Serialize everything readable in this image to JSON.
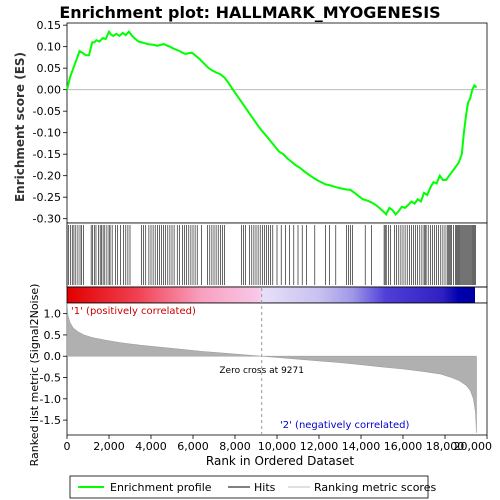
{
  "chart_data": [
    {
      "type": "line",
      "title": "Enrichment plot: HALLMARK_MYOGENESIS",
      "ylabel": "Enrichment score (ES)",
      "ylim": [
        -0.31,
        0.155
      ],
      "xlim": [
        0,
        20000
      ],
      "y_ticks": [
        "0.15",
        "0.10",
        "0.05",
        "0.00",
        "-0.05",
        "-0.10",
        "-0.15",
        "-0.20",
        "-0.25",
        "-0.30"
      ],
      "y_tick_values": [
        0.15,
        0.1,
        0.05,
        0.0,
        -0.05,
        -0.1,
        -0.15,
        -0.2,
        -0.25,
        -0.3
      ],
      "series": [
        {
          "name": "Enrichment profile",
          "color": "#00ff00",
          "x": [
            0,
            150,
            300,
            450,
            600,
            750,
            900,
            1050,
            1200,
            1300,
            1400,
            1550,
            1700,
            1850,
            2000,
            2100,
            2200,
            2350,
            2500,
            2650,
            2800,
            2950,
            3100,
            3250,
            3400,
            3550,
            3700,
            3850,
            4000,
            4150,
            4300,
            4450,
            4600,
            4750,
            4900,
            5050,
            5200,
            5350,
            5500,
            5650,
            5800,
            5950,
            6100,
            6300,
            6500,
            6700,
            6900,
            7100,
            7300,
            7500,
            7700,
            7900,
            8100,
            8300,
            8500,
            8700,
            8900,
            9100,
            9271,
            9500,
            9700,
            9900,
            10100,
            10300,
            10500,
            10700,
            10900,
            11100,
            11300,
            11500,
            11700,
            11900,
            12100,
            12300,
            12500,
            12700,
            12900,
            13100,
            13300,
            13500,
            13700,
            13900,
            14100,
            14300,
            14500,
            14700,
            14900,
            15100,
            15200,
            15350,
            15500,
            15650,
            15800,
            15950,
            16100,
            16250,
            16400,
            16550,
            16700,
            16850,
            17000,
            17150,
            17300,
            17450,
            17600,
            17750,
            17900,
            18050,
            18200,
            18350,
            18500,
            18650,
            18800,
            18900,
            19000,
            19100,
            19200,
            19300,
            19400,
            19500
          ],
          "y": [
            0.0,
            0.03,
            0.05,
            0.07,
            0.09,
            0.085,
            0.08,
            0.08,
            0.11,
            0.11,
            0.115,
            0.112,
            0.12,
            0.118,
            0.135,
            0.128,
            0.125,
            0.13,
            0.125,
            0.132,
            0.127,
            0.135,
            0.125,
            0.118,
            0.112,
            0.11,
            0.108,
            0.106,
            0.105,
            0.104,
            0.102,
            0.104,
            0.106,
            0.103,
            0.1,
            0.096,
            0.093,
            0.09,
            0.086,
            0.083,
            0.085,
            0.086,
            0.08,
            0.072,
            0.062,
            0.052,
            0.045,
            0.04,
            0.036,
            0.028,
            0.015,
            0.0,
            -0.014,
            -0.028,
            -0.042,
            -0.056,
            -0.07,
            -0.084,
            -0.095,
            -0.108,
            -0.12,
            -0.132,
            -0.144,
            -0.15,
            -0.16,
            -0.168,
            -0.176,
            -0.182,
            -0.19,
            -0.197,
            -0.204,
            -0.21,
            -0.215,
            -0.22,
            -0.222,
            -0.225,
            -0.228,
            -0.23,
            -0.232,
            -0.233,
            -0.24,
            -0.248,
            -0.255,
            -0.258,
            -0.262,
            -0.268,
            -0.276,
            -0.285,
            -0.29,
            -0.275,
            -0.28,
            -0.29,
            -0.282,
            -0.272,
            -0.275,
            -0.268,
            -0.26,
            -0.265,
            -0.255,
            -0.26,
            -0.24,
            -0.245,
            -0.228,
            -0.215,
            -0.218,
            -0.2,
            -0.21,
            -0.21,
            -0.2,
            -0.19,
            -0.18,
            -0.17,
            -0.15,
            -0.1,
            -0.06,
            -0.03,
            -0.02,
            0.0,
            0.01,
            0.005
          ]
        }
      ]
    },
    {
      "type": "bar",
      "title": "",
      "ylabel": "Ranked list metric (Signal2Noise)",
      "xlabel": "Rank in Ordered Dataset",
      "xlim": [
        0,
        20000
      ],
      "ylim": [
        -1.85,
        1.25
      ],
      "x_ticks": [
        "0",
        "2,000",
        "4,000",
        "6,000",
        "8,000",
        "10,000",
        "12,000",
        "14,000",
        "16,000",
        "18,000",
        "20,000"
      ],
      "x_tick_values": [
        0,
        2000,
        4000,
        6000,
        8000,
        10000,
        12000,
        14000,
        16000,
        18000,
        20000
      ],
      "y_ticks": [
        "1.0",
        "0.5",
        "0.0",
        "-0.5",
        "-1.0",
        "-1.5"
      ],
      "y_tick_values": [
        1.0,
        0.5,
        0.0,
        -0.5,
        -1.0,
        -1.5
      ],
      "series": [
        {
          "name": "Ranking metric scores",
          "color": "#b0b0b0",
          "x": [
            0,
            50,
            150,
            300,
            500,
            800,
            1200,
            1800,
            2500,
            3500,
            4500,
            5500,
            6500,
            7500,
            8500,
            9271,
            10000,
            11000,
            12000,
            13000,
            14000,
            15000,
            16000,
            17000,
            17800,
            18300,
            18700,
            19000,
            19200,
            19350,
            19450,
            19500
          ],
          "y": [
            1.25,
            0.95,
            0.78,
            0.66,
            0.58,
            0.5,
            0.44,
            0.38,
            0.32,
            0.26,
            0.21,
            0.16,
            0.11,
            0.07,
            0.03,
            0.0,
            -0.03,
            -0.07,
            -0.11,
            -0.15,
            -0.2,
            -0.25,
            -0.3,
            -0.36,
            -0.42,
            -0.5,
            -0.58,
            -0.68,
            -0.8,
            -1.0,
            -1.3,
            -1.8
          ]
        }
      ],
      "annotations": [
        {
          "text": "'1' (positively correlated)",
          "color": "#cc0000"
        },
        {
          "text": "Zero cross at 9271",
          "color": "#000000",
          "x": 9271
        },
        {
          "text": "'2' (negatively correlated)",
          "color": "#0000cc"
        }
      ]
    }
  ],
  "hits": [
    0,
    80,
    160,
    250,
    330,
    420,
    520,
    620,
    700,
    780,
    1150,
    1220,
    1300,
    1380,
    1500,
    1580,
    1650,
    1720,
    1800,
    1900,
    2000,
    2050,
    2150,
    2300,
    2400,
    2550,
    2700,
    2800,
    2900,
    3000,
    3550,
    3650,
    3750,
    3900,
    4000,
    4100,
    4200,
    4300,
    4400,
    4500,
    4600,
    4700,
    4800,
    4900,
    5000,
    5100,
    5250,
    5350,
    5500,
    5600,
    5700,
    5800,
    5900,
    6000,
    6100,
    6200,
    6400,
    6700,
    6800,
    6900,
    7000,
    7100,
    7200,
    7300,
    7400,
    7500,
    8300,
    8400,
    8500,
    8700,
    8800,
    8900,
    9000,
    9100,
    9200,
    9300,
    9400,
    9500,
    9600,
    9700,
    9800,
    10000,
    10200,
    10400,
    10600,
    10800,
    11000,
    11200,
    11400,
    11800,
    12300,
    12500,
    12800,
    13300,
    13400,
    13500,
    13600,
    14200,
    14500,
    15100,
    15150,
    15200,
    15300,
    15400,
    15600,
    15700,
    15800,
    15900,
    16000,
    16100,
    16200,
    16300,
    16400,
    16500,
    16600,
    16700,
    16800,
    16900,
    17000,
    17050,
    17100,
    17200,
    17300,
    17400,
    17500,
    17600,
    17700,
    17800,
    17900,
    18000,
    18100,
    18150,
    18200,
    18250,
    18300,
    18400,
    18500,
    18550,
    18600,
    18650,
    18700,
    18750,
    18800,
    18850,
    18900,
    18950,
    19000,
    19050,
    19100,
    19150,
    19200,
    19250,
    19300,
    19350,
    19400,
    19450
  ],
  "legend": {
    "items": [
      {
        "label": "Enrichment profile",
        "color": "#00ff00"
      },
      {
        "label": "Hits",
        "color": "#000000"
      },
      {
        "label": "Ranking metric scores",
        "color": "#c0c0c0"
      }
    ]
  }
}
